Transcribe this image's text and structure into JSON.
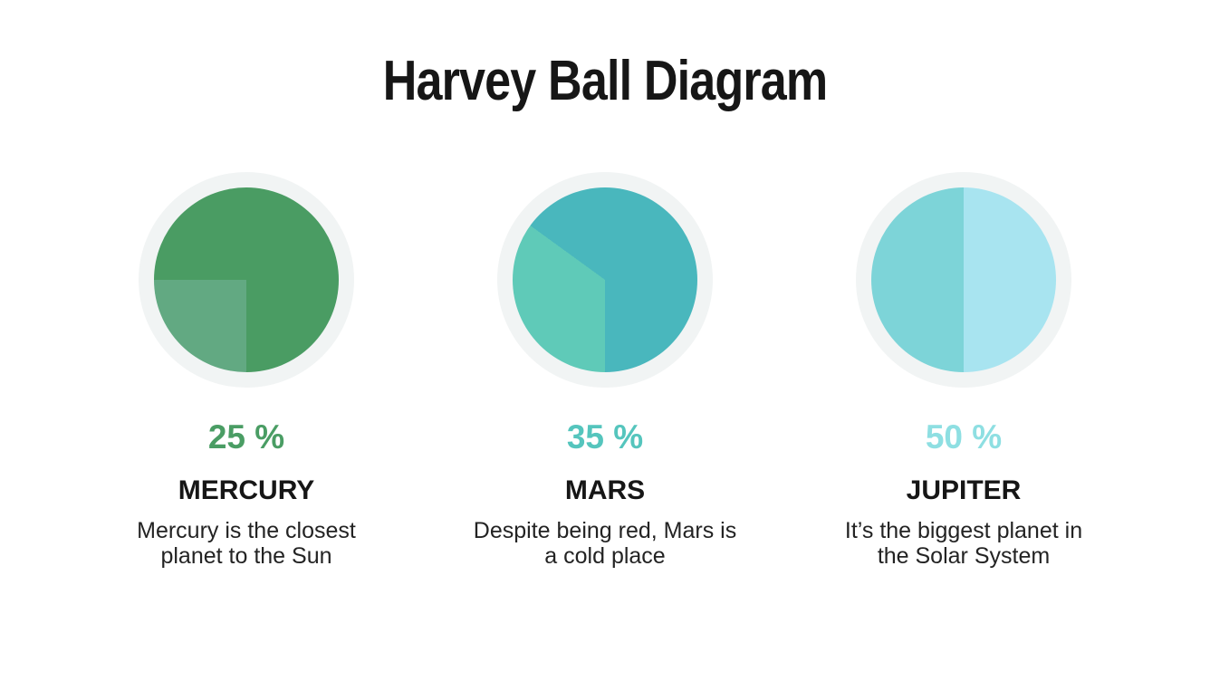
{
  "title": "Harvey Ball Diagram",
  "colors": {
    "background": "#ffffff",
    "title_text": "#161616",
    "name_text": "#161616",
    "desc_text": "#232323",
    "halo": "#f1f4f4"
  },
  "balls": [
    {
      "name": "MERCURY",
      "percent": 25,
      "percent_label": "25 %",
      "description": "Mercury is the closest\nplanet to the Sun",
      "base_color": "#4a9c63",
      "wedge_color": "#62a982",
      "percent_color": "#4a9d64"
    },
    {
      "name": "MARS",
      "percent": 35,
      "percent_label": "35 %",
      "description": "Despite being red, Mars is\na cold place",
      "base_color": "#49b7bd",
      "wedge_color": "#5fcab8",
      "percent_color": "#55c5bd"
    },
    {
      "name": "JUPITER",
      "percent": 50,
      "percent_label": "50 %",
      "description": "It’s the biggest planet in\nthe Solar System",
      "base_color": "#a8e4f0",
      "wedge_color": "#7dd4d8",
      "percent_color": "#8edfe2"
    }
  ],
  "chart_data": {
    "type": "pie",
    "title": "Harvey Ball Diagram",
    "categories": [
      "MERCURY",
      "MARS",
      "JUPITER"
    ],
    "values": [
      25,
      35,
      50
    ],
    "value_unit": "%",
    "value_labels": [
      "25 %",
      "35 %",
      "50 %"
    ],
    "annotations": [
      "Mercury is the closest planet to the Sun",
      "Despite being red, Mars is a cold place",
      "It’s the biggest planet in the Solar System"
    ],
    "wedge_colors": [
      "#62a982",
      "#5fcab8",
      "#7dd4d8"
    ],
    "base_colors": [
      "#4a9c63",
      "#49b7bd",
      "#a8e4f0"
    ],
    "wedge_start": "6 o'clock, sweeping clockwise through left side",
    "legend": "none"
  }
}
